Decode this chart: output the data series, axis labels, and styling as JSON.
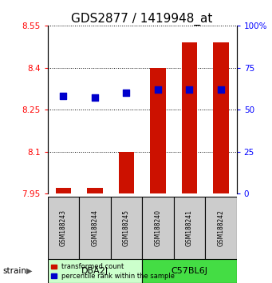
{
  "title": "GDS2877 / 1419948_at",
  "samples": [
    "GSM188243",
    "GSM188244",
    "GSM188245",
    "GSM188240",
    "GSM188241",
    "GSM188242"
  ],
  "group_labels": [
    "DBA2J",
    "C57BL6J"
  ],
  "group_colors": [
    "#ccffcc",
    "#44dd44"
  ],
  "bar_bottom": 7.95,
  "transformed_counts": [
    7.97,
    7.97,
    8.1,
    8.4,
    8.49,
    8.49
  ],
  "percentile_ranks": [
    58,
    57,
    60,
    62,
    62,
    62
  ],
  "ylim_left": [
    7.95,
    8.55
  ],
  "ylim_right": [
    0,
    100
  ],
  "yticks_left": [
    7.95,
    8.1,
    8.25,
    8.4,
    8.55
  ],
  "yticks_right": [
    0,
    25,
    50,
    75,
    100
  ],
  "yticklabels_left": [
    "7.95",
    "8.1",
    "8.25",
    "8.4",
    "8.55"
  ],
  "yticklabels_right": [
    "0",
    "25",
    "50",
    "75",
    "100%"
  ],
  "bar_color": "#cc1100",
  "dot_color": "#0000cc",
  "bar_width": 0.5,
  "dot_size": 35,
  "sample_box_color": "#cccccc",
  "title_fontsize": 11,
  "tick_fontsize": 7.5,
  "label_fontsize": 7
}
